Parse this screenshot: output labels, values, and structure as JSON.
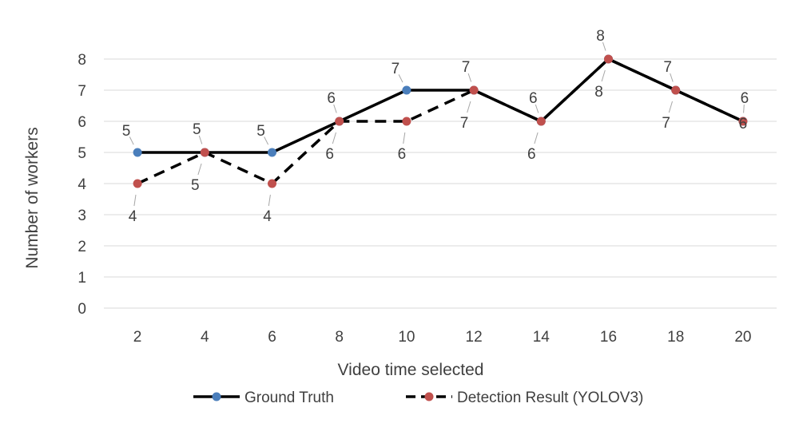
{
  "chart_data": {
    "type": "line",
    "title": "",
    "xlabel": "Video time selected",
    "ylabel": "Number of workers",
    "categories": [
      "2",
      "4",
      "6",
      "8",
      "10",
      "12",
      "14",
      "16",
      "18",
      "20"
    ],
    "ylim": [
      0,
      8
    ],
    "yticks": [
      "0",
      "1",
      "2",
      "3",
      "4",
      "5",
      "6",
      "7",
      "8"
    ],
    "grid": true,
    "legend_position": "bottom",
    "series": [
      {
        "name": "Ground Truth",
        "values": [
          5,
          5,
          5,
          6,
          7,
          7,
          6,
          8,
          7,
          6
        ],
        "data_labels": [
          "5",
          "5",
          "5",
          "6",
          "7",
          "7",
          "6",
          "8",
          "7",
          "6"
        ],
        "line_color": "#000000",
        "marker_color": "#4a7ebb",
        "dashed": false
      },
      {
        "name": "Detection Result (YOLOV3)",
        "values": [
          4,
          5,
          4,
          6,
          6,
          7,
          6,
          8,
          7,
          6
        ],
        "data_labels": [
          "4",
          "5",
          "4",
          "6",
          "6",
          "7",
          "6",
          "8",
          "7",
          "6"
        ],
        "line_color": "#000000",
        "marker_color": "#c0504d",
        "dashed": true
      }
    ]
  }
}
